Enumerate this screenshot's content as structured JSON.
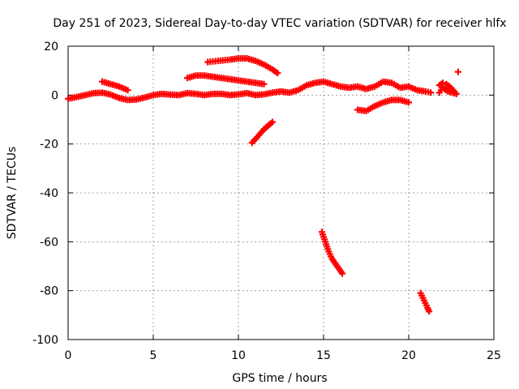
{
  "chart_data": {
    "type": "scatter",
    "title": "Day 251 of 2023, Sidereal Day-to-day VTEC variation (SDTVAR) for receiver hlfx",
    "xlabel": "GPS time / hours",
    "ylabel": "SDTVAR / TECUs",
    "xlim": [
      0,
      25
    ],
    "ylim": [
      -100,
      20
    ],
    "xticks": [
      "0",
      "5",
      "10",
      "15",
      "20",
      "25"
    ],
    "yticks": [
      "-100",
      "-80",
      "-60",
      "-40",
      "-20",
      "0",
      "20"
    ],
    "grid": true,
    "marker": "plus",
    "color": "#ff0000",
    "segments": [
      [
        [
          0.0,
          -1.5
        ],
        [
          0.5,
          -0.8
        ],
        [
          1.0,
          0.0
        ],
        [
          1.5,
          0.8
        ],
        [
          2.0,
          1.0
        ],
        [
          2.5,
          0.2
        ],
        [
          3.0,
          -1.2
        ],
        [
          3.5,
          -2.0
        ],
        [
          4.0,
          -1.8
        ],
        [
          4.5,
          -1.0
        ],
        [
          5.0,
          0.0
        ],
        [
          5.5,
          0.5
        ],
        [
          6.0,
          0.2
        ],
        [
          6.5,
          0.0
        ],
        [
          7.0,
          0.8
        ],
        [
          7.5,
          0.5
        ],
        [
          8.0,
          0.0
        ],
        [
          8.5,
          0.5
        ],
        [
          9.0,
          0.5
        ],
        [
          9.5,
          0.0
        ],
        [
          10.0,
          0.3
        ],
        [
          10.5,
          0.8
        ],
        [
          11.0,
          0.0
        ],
        [
          11.5,
          0.3
        ],
        [
          12.0,
          1.0
        ],
        [
          12.5,
          1.5
        ],
        [
          13.0,
          1.0
        ],
        [
          13.5,
          2.0
        ],
        [
          14.0,
          4.0
        ],
        [
          14.5,
          5.0
        ],
        [
          15.0,
          5.5
        ],
        [
          15.5,
          4.5
        ],
        [
          16.0,
          3.5
        ],
        [
          16.5,
          3.0
        ],
        [
          17.0,
          3.5
        ],
        [
          17.5,
          2.5
        ],
        [
          18.0,
          3.5
        ],
        [
          18.5,
          5.5
        ],
        [
          19.0,
          5.0
        ],
        [
          19.5,
          3.0
        ],
        [
          20.0,
          3.5
        ],
        [
          20.5,
          2.0
        ],
        [
          21.0,
          1.5
        ],
        [
          21.3,
          1.0
        ]
      ],
      [
        [
          2.0,
          5.5
        ],
        [
          2.5,
          4.5
        ],
        [
          3.0,
          3.5
        ],
        [
          3.5,
          2.0
        ]
      ],
      [
        [
          7.0,
          7.0
        ],
        [
          7.5,
          8.0
        ],
        [
          8.0,
          8.0
        ],
        [
          8.5,
          7.5
        ],
        [
          9.0,
          7.0
        ],
        [
          9.5,
          6.5
        ],
        [
          10.0,
          6.0
        ],
        [
          10.5,
          5.5
        ],
        [
          11.0,
          5.0
        ],
        [
          11.5,
          4.5
        ]
      ],
      [
        [
          8.2,
          13.5
        ],
        [
          8.8,
          14.0
        ],
        [
          9.5,
          14.5
        ],
        [
          10.0,
          15.0
        ],
        [
          10.5,
          15.0
        ],
        [
          11.0,
          14.0
        ],
        [
          11.5,
          12.5
        ],
        [
          12.0,
          10.5
        ],
        [
          12.3,
          9.0
        ]
      ],
      [
        [
          12.0,
          -11.0
        ],
        [
          11.5,
          -14.0
        ],
        [
          11.0,
          -18.0
        ],
        [
          10.8,
          -19.5
        ]
      ],
      [
        [
          14.9,
          -56.0
        ],
        [
          15.1,
          -60.0
        ],
        [
          15.3,
          -64.0
        ],
        [
          15.5,
          -67.0
        ],
        [
          15.8,
          -70.0
        ],
        [
          16.1,
          -73.0
        ]
      ],
      [
        [
          17.0,
          -6.0
        ],
        [
          17.5,
          -6.5
        ],
        [
          18.0,
          -4.5
        ],
        [
          18.5,
          -3.0
        ],
        [
          19.0,
          -2.0
        ],
        [
          19.5,
          -2.0
        ],
        [
          20.0,
          -3.0
        ]
      ],
      [
        [
          20.7,
          -81.0
        ],
        [
          20.9,
          -84.0
        ],
        [
          21.1,
          -87.0
        ],
        [
          21.2,
          -88.5
        ]
      ],
      [
        [
          21.8,
          4.0
        ],
        [
          22.0,
          5.0
        ],
        [
          22.2,
          4.5
        ],
        [
          22.4,
          3.5
        ],
        [
          22.6,
          2.0
        ],
        [
          22.8,
          0.5
        ],
        [
          22.3,
          1.5
        ],
        [
          22.0,
          3.0
        ],
        [
          21.8,
          1.0
        ]
      ],
      [
        [
          22.9,
          9.5
        ]
      ]
    ]
  }
}
